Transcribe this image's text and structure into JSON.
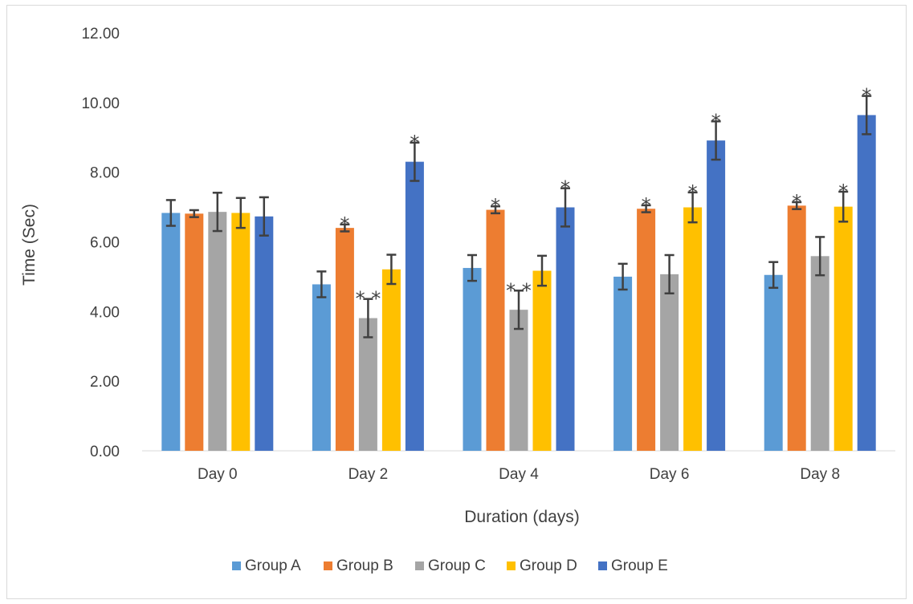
{
  "chart_data": {
    "type": "bar",
    "xlabel": "Duration (days)",
    "ylabel": "Time (Sec)",
    "ylim": [
      0,
      12
    ],
    "yticks": [
      "0.00",
      "2.00",
      "4.00",
      "6.00",
      "8.00",
      "10.00",
      "12.00"
    ],
    "categories": [
      "Day 0",
      "Day 2",
      "Day 4",
      "Day 6",
      "Day 8"
    ],
    "grid": false,
    "legend_position": "bottom",
    "series": [
      {
        "name": "Group A",
        "color": "#5B9BD5",
        "values": [
          6.83,
          4.78,
          5.25,
          5.0,
          5.05
        ],
        "errors": [
          0.37,
          0.37,
          0.37,
          0.37,
          0.37
        ],
        "annotations": [
          "",
          "",
          "",
          "",
          ""
        ]
      },
      {
        "name": "Group B",
        "color": "#ED7D31",
        "values": [
          6.81,
          6.4,
          6.92,
          6.95,
          7.04
        ],
        "errors": [
          0.1,
          0.1,
          0.1,
          0.1,
          0.1
        ],
        "annotations": [
          "",
          "*",
          "*",
          "*",
          "*"
        ]
      },
      {
        "name": "Group C",
        "color": "#A5A5A5",
        "values": [
          6.86,
          3.81,
          4.05,
          5.07,
          5.59
        ],
        "errors": [
          0.55,
          0.55,
          0.55,
          0.55,
          0.55
        ],
        "annotations": [
          "",
          "**",
          "**",
          "",
          ""
        ]
      },
      {
        "name": "Group D",
        "color": "#FFC000",
        "values": [
          6.83,
          5.21,
          5.17,
          6.99,
          7.01
        ],
        "errors": [
          0.43,
          0.42,
          0.43,
          0.43,
          0.43
        ],
        "annotations": [
          "",
          "",
          "",
          "*",
          "*"
        ]
      },
      {
        "name": "Group E",
        "color": "#4472C4",
        "values": [
          6.73,
          8.3,
          6.99,
          8.91,
          9.64
        ],
        "errors": [
          0.55,
          0.55,
          0.55,
          0.55,
          0.55
        ],
        "annotations": [
          "",
          "*",
          "*",
          "*",
          "*"
        ]
      }
    ]
  }
}
